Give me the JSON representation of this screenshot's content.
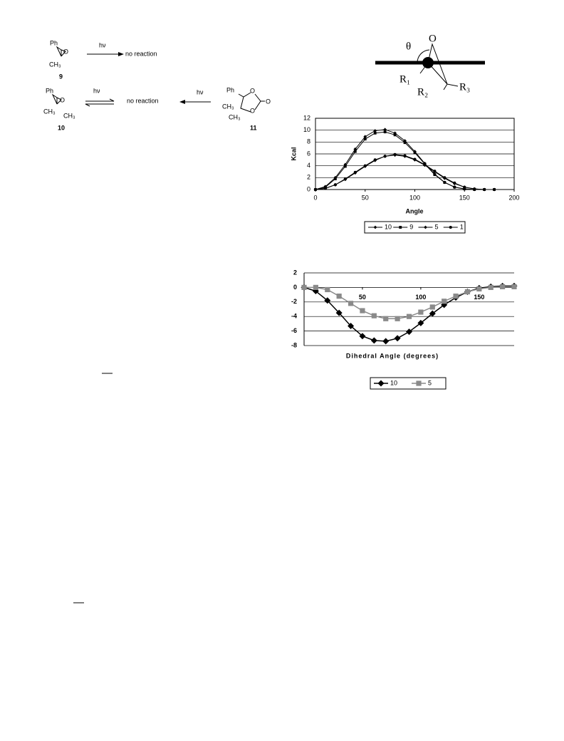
{
  "scheme": {
    "compound_9": {
      "substituents": [
        "Ph",
        "CH₃"
      ],
      "ring_atom": "O",
      "number": "9"
    },
    "reaction_9": {
      "condition": "hν",
      "product": "no reaction"
    },
    "compound_10": {
      "substituents": [
        "Ph",
        "CH₃",
        "CH₃"
      ],
      "ring_atom": "O",
      "number": "10"
    },
    "reaction_10": {
      "condition": "hν",
      "product": "no reaction"
    },
    "reaction_11": {
      "condition": "hν"
    },
    "compound_11": {
      "substituents": [
        "Ph",
        "CH₃",
        "CH₃"
      ],
      "ring_atoms": [
        "O",
        "O"
      ],
      "carbonyl": "O",
      "number": "11"
    }
  },
  "diagram": {
    "angle": "θ",
    "atom": "O",
    "groups": [
      "R₁",
      "R₂",
      "R₃"
    ]
  },
  "chart_data": [
    {
      "type": "line",
      "xlabel": "Angle",
      "ylabel": "Kcal",
      "x": [
        0,
        10,
        20,
        30,
        40,
        50,
        60,
        70,
        80,
        90,
        100,
        110,
        120,
        130,
        140,
        150,
        160,
        170,
        180
      ],
      "series": [
        {
          "name": "10",
          "color": "#000000",
          "marker": "diamond",
          "values": [
            0,
            0.5,
            2,
            4.2,
            6.8,
            8.9,
            9.9,
            10.1,
            9.5,
            8.2,
            6.4,
            4.4,
            2.6,
            1.2,
            0.4,
            0.1,
            0,
            0,
            0
          ]
        },
        {
          "name": "9",
          "color": "#000000",
          "marker": "square",
          "values": [
            0,
            0.4,
            1.8,
            3.9,
            6.4,
            8.5,
            9.5,
            9.7,
            9.2,
            7.9,
            6.2,
            4.3,
            2.5,
            1.2,
            0.4,
            0.1,
            0,
            0,
            0
          ]
        },
        {
          "name": "5",
          "color": "#000000",
          "marker": "diamond",
          "values": [
            0,
            0.2,
            0.8,
            1.7,
            2.8,
            3.9,
            4.9,
            5.6,
            5.8,
            5.6,
            5,
            4.1,
            3,
            1.9,
            1,
            0.4,
            0.1,
            0,
            0
          ]
        },
        {
          "name": "1",
          "color": "#000000",
          "marker": "circle",
          "values": [
            0,
            0.2,
            0.8,
            1.8,
            2.9,
            4,
            5,
            5.6,
            5.9,
            5.7,
            5.1,
            4.2,
            3.1,
            2,
            1.1,
            0.4,
            0.1,
            0,
            0
          ]
        }
      ],
      "xlim": [
        0,
        200
      ],
      "xticks": [
        0,
        50,
        100,
        150,
        200
      ],
      "ylim": [
        0,
        12
      ],
      "yticks": [
        0,
        2,
        4,
        6,
        8,
        10,
        12
      ],
      "grid": true,
      "legend": "bottom"
    },
    {
      "type": "line",
      "xlabel": "Dihedral Angle (degrees)",
      "x": [
        0,
        10,
        20,
        30,
        40,
        50,
        60,
        70,
        80,
        90,
        100,
        110,
        120,
        130,
        140,
        150,
        160,
        170,
        180
      ],
      "series": [
        {
          "name": "10",
          "color": "#000000",
          "marker": "diamond",
          "values": [
            0,
            -0.5,
            -1.8,
            -3.5,
            -5.3,
            -6.7,
            -7.3,
            -7.4,
            -7,
            -6.1,
            -4.9,
            -3.6,
            -2.4,
            -1.4,
            -0.6,
            -0.1,
            0.1,
            0.2,
            0.2
          ]
        },
        {
          "name": "5",
          "color": "#8a8a8a",
          "marker": "square",
          "values": [
            0,
            0,
            -0.3,
            -1.2,
            -2.2,
            -3.2,
            -3.9,
            -4.3,
            -4.3,
            -4,
            -3.4,
            -2.7,
            -1.9,
            -1.2,
            -0.6,
            -0.2,
            0,
            0.1,
            0.1
          ]
        }
      ],
      "xlim": [
        0,
        180
      ],
      "xticks": [
        50,
        100,
        150
      ],
      "ylim": [
        -8,
        2
      ],
      "yticks": [
        -8,
        -6,
        -4,
        -2,
        0,
        2
      ],
      "grid": true,
      "legend": "bottom"
    }
  ]
}
